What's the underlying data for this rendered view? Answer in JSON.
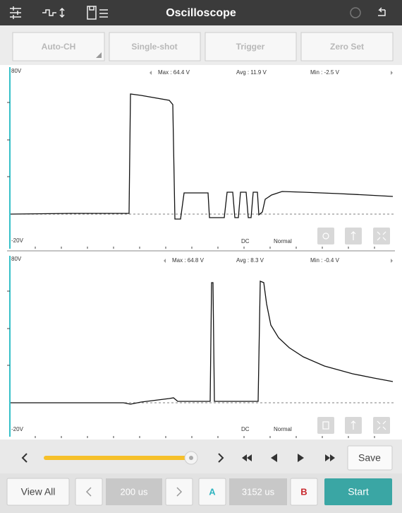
{
  "header": {
    "title": "Oscilloscope"
  },
  "buttons": [
    "Auto-CH",
    "Single-shot",
    "Trigger",
    "Zero Set"
  ],
  "channels": [
    {
      "top_label": "80V",
      "bottom_label": "-20V",
      "max": "Max : 64.4 V",
      "avg": "Avg : 11.9 V",
      "min": "Min : -2.5 V",
      "coupling": "DC",
      "mode": "Normal"
    },
    {
      "top_label": "80V",
      "bottom_label": "-20V",
      "max": "Max : 64.8 V",
      "avg": "Avg : 8.3 V",
      "min": "Min : -0.4 V",
      "coupling": "DC",
      "mode": "Normal"
    }
  ],
  "controls": {
    "save": "Save"
  },
  "footer": {
    "view_all": "View All",
    "time_div": "200 us",
    "cursor_a": "A",
    "cursor_pos": "3152 us",
    "cursor_b": "B",
    "start": "Start"
  }
}
